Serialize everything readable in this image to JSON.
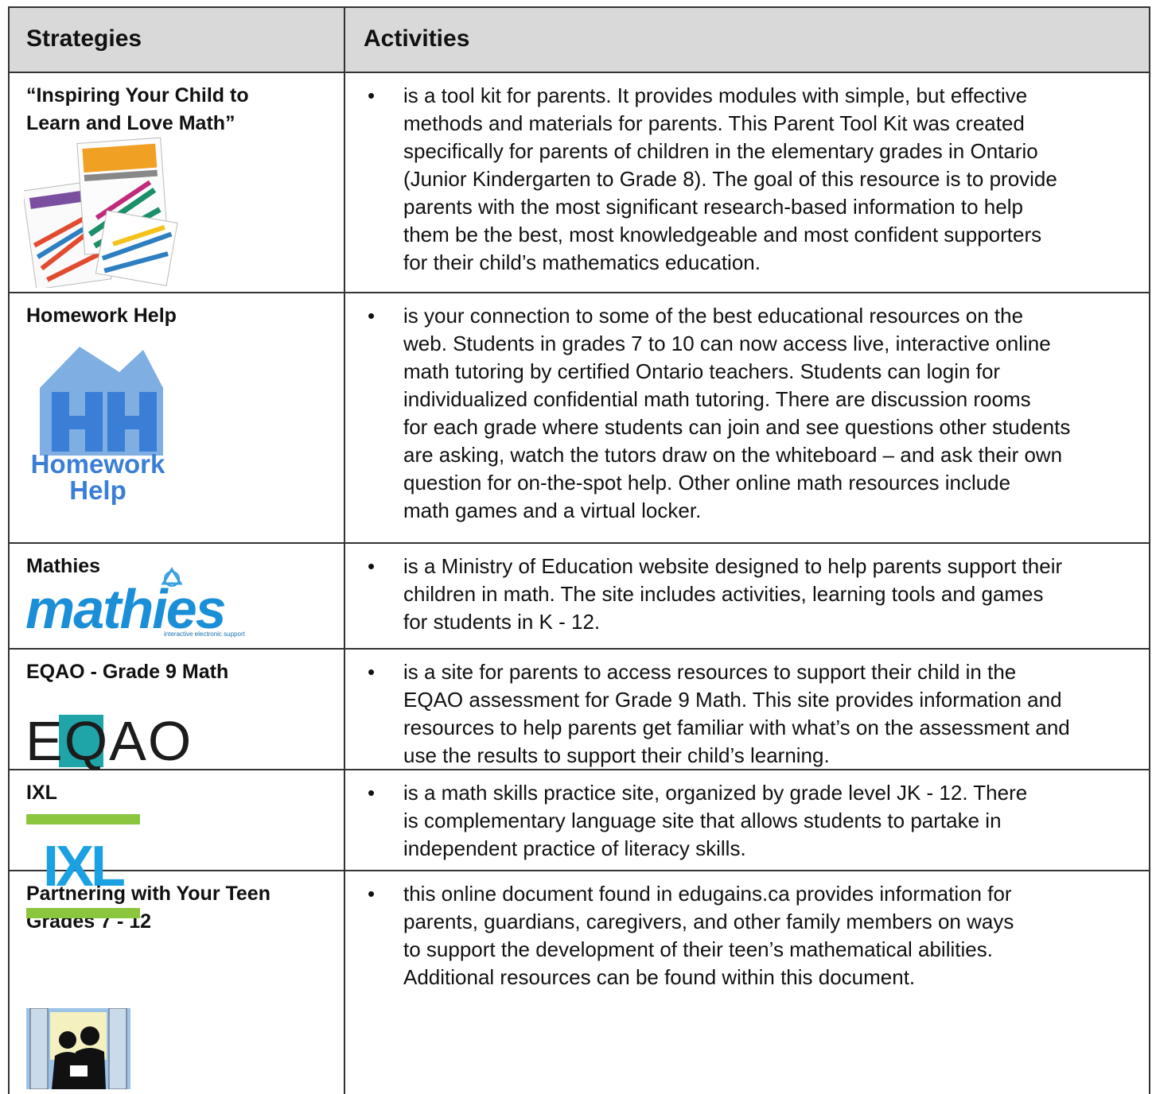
{
  "table": {
    "header": [
      "Strategies",
      "Activities"
    ],
    "rows": [
      {
        "strategy": [
          "“Inspiring Your Child to",
          "Learn and Love Math”"
        ],
        "activity": [
          "is a tool kit for parents. It provides modules with simple, but effective",
          "methods and materials for parents.  This Parent Tool Kit was created",
          "specifically for parents of children in the elementary grades in Ontario",
          "(Junior Kindergarten to Grade 8). The goal of this resource is to provide",
          "parents with the most significant research-based information to help",
          "them be the best, most knowledgeable and most confident supporters",
          "for their child’s mathematics education."
        ]
      },
      {
        "strategy": [
          "Homework Help"
        ],
        "activity": [
          "is your connection to some of the best educational resources on the",
          "web. Students in grades 7 to 10 can now access live, interactive online",
          "math tutoring by certified Ontario teachers. Students can login for",
          "individualized confidential math tutoring. There are discussion rooms",
          "for each grade where students can join and see questions other students",
          "are asking, watch the tutors draw on the whiteboard – and ask their own",
          "question for on-the-spot help.  Other online math resources include",
          "math games and a virtual locker."
        ],
        "logo": [
          "Homework",
          "Help"
        ]
      },
      {
        "strategy": [
          "Mathies"
        ],
        "activity": [
          "is a Ministry of Education website designed to help parents support their",
          "children in math. The site includes activities, learning tools and games",
          "for students in K - 12."
        ],
        "logo": [
          "mathies",
          "interactive electronic supports"
        ]
      },
      {
        "strategy": [
          "EQAO - Grade 9 Math"
        ],
        "activity": [
          "is a site for parents to access resources to support their child in the",
          "EQAO assessment for Grade 9 Math.  This site provides information and",
          "resources to help parents get familiar with what’s on the assessment and",
          "use the results to support their child’s learning."
        ],
        "logo": [
          "EQAO"
        ]
      },
      {
        "strategy": [
          "IXL"
        ],
        "activity": [
          "is a math skills practice site, organized by grade level JK - 12.  There",
          "is complementary language site that allows students to partake in",
          "independent practice of literacy skills."
        ],
        "logo": [
          "IXL"
        ]
      },
      {
        "strategy": [
          "Partnering with Your Teen",
          "Grades 7 - 12"
        ],
        "activity": [
          "this online document found in edugains.ca provides information for",
          "parents, guardians, caregivers, and other family members on ways",
          "to support the development of their teen’s mathematical abilities.",
          "Additional resources can be found within this document."
        ]
      }
    ]
  }
}
